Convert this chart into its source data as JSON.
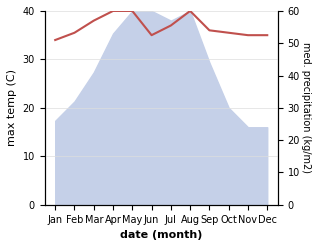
{
  "months": [
    "Jan",
    "Feb",
    "Mar",
    "Apr",
    "May",
    "Jun",
    "Jul",
    "Aug",
    "Sep",
    "Oct",
    "Nov",
    "Dec"
  ],
  "temperature": [
    34,
    35.5,
    38,
    40,
    40,
    35,
    37,
    40,
    36,
    35.5,
    35,
    35
  ],
  "precipitation": [
    26,
    32,
    41,
    53,
    60,
    60,
    57,
    60,
    44,
    30,
    24,
    24
  ],
  "temp_color": "#c0504d",
  "precip_fill_color": "#c5d0e8",
  "ylabel_left": "max temp (C)",
  "ylabel_right": "med. precipitation (kg/m2)",
  "xlabel": "date (month)",
  "ylim_left": [
    0,
    40
  ],
  "ylim_right": [
    0,
    60
  ],
  "yticks_left": [
    0,
    10,
    20,
    30,
    40
  ],
  "yticks_right": [
    0,
    10,
    20,
    30,
    40,
    50,
    60
  ],
  "bg_color": "#ffffff"
}
